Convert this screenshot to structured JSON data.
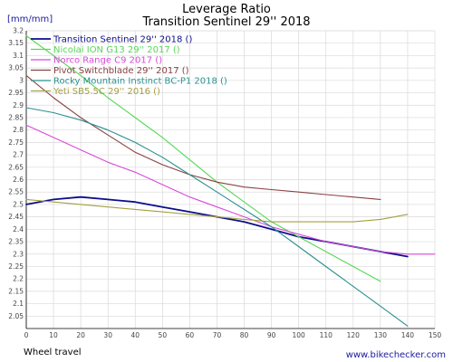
{
  "chart_data": {
    "type": "line",
    "title": "Leverage Ratio",
    "subtitle": "Transition Sentinel 29'' 2018",
    "unit_label": "[mm/mm]",
    "xlabel": "Wheel travel",
    "credit": "www.bikechecker.com",
    "xlim": [
      0,
      150
    ],
    "ylim": [
      2.0,
      3.2
    ],
    "x_ticks": [
      0,
      10,
      20,
      30,
      40,
      50,
      60,
      70,
      80,
      90,
      100,
      110,
      120,
      130,
      140,
      150
    ],
    "y_ticks": [
      2.05,
      2.1,
      2.15,
      2.2,
      2.25,
      2.3,
      2.35,
      2.4,
      2.45,
      2.5,
      2.55,
      2.6,
      2.65,
      2.7,
      2.75,
      2.8,
      2.85,
      2.9,
      2.95,
      3.0,
      3.05,
      3.1,
      3.15,
      3.2
    ],
    "grid": true,
    "legend_position": "top-left",
    "series": [
      {
        "name": "Transition Sentinel 29'' 2018 ()",
        "color": "#0d0d8c",
        "x": [
          0,
          10,
          20,
          30,
          40,
          50,
          60,
          70,
          80,
          90,
          100,
          110,
          120,
          130,
          140
        ],
        "y": [
          2.5,
          2.52,
          2.53,
          2.52,
          2.51,
          2.49,
          2.47,
          2.45,
          2.43,
          2.4,
          2.37,
          2.35,
          2.33,
          2.31,
          2.29
        ]
      },
      {
        "name": "Nicolai ION G13 29'' 2017 ()",
        "color": "#55d855",
        "x": [
          0,
          10,
          20,
          30,
          40,
          50,
          60,
          70,
          80,
          90,
          100,
          110,
          120,
          130
        ],
        "y": [
          3.18,
          3.1,
          3.02,
          2.93,
          2.85,
          2.77,
          2.68,
          2.59,
          2.51,
          2.43,
          2.37,
          2.31,
          2.25,
          2.19
        ]
      },
      {
        "name": "Norco Range C9 2017 ()",
        "color": "#d84ad8",
        "x": [
          0,
          10,
          20,
          30,
          40,
          50,
          60,
          70,
          80,
          90,
          100,
          110,
          120,
          130,
          140,
          150
        ],
        "y": [
          2.82,
          2.77,
          2.72,
          2.67,
          2.63,
          2.58,
          2.53,
          2.49,
          2.45,
          2.41,
          2.38,
          2.35,
          2.33,
          2.31,
          2.3,
          2.3
        ]
      },
      {
        "name": "Pivot Switchblade 29'' 2017 ()",
        "color": "#8a4040",
        "x": [
          0,
          10,
          20,
          30,
          40,
          50,
          60,
          70,
          80,
          90,
          100,
          110,
          120,
          130
        ],
        "y": [
          3.02,
          2.93,
          2.85,
          2.78,
          2.71,
          2.66,
          2.62,
          2.59,
          2.57,
          2.56,
          2.55,
          2.54,
          2.53,
          2.52
        ]
      },
      {
        "name": "Rocky Mountain Instinct BC-P1 2018 ()",
        "color": "#2a9090",
        "x": [
          0,
          10,
          20,
          30,
          40,
          50,
          60,
          70,
          80,
          90,
          100,
          110,
          120,
          130,
          140
        ],
        "y": [
          2.89,
          2.87,
          2.84,
          2.8,
          2.75,
          2.69,
          2.62,
          2.55,
          2.48,
          2.41,
          2.33,
          2.25,
          2.17,
          2.09,
          2.01
        ]
      },
      {
        "name": "Yeti SB5.5C 29'' 2016 ()",
        "color": "#a3a040",
        "x": [
          0,
          10,
          20,
          30,
          40,
          50,
          60,
          70,
          80,
          90,
          100,
          110,
          120,
          130,
          140
        ],
        "y": [
          2.52,
          2.51,
          2.5,
          2.49,
          2.48,
          2.47,
          2.46,
          2.45,
          2.44,
          2.43,
          2.43,
          2.43,
          2.43,
          2.44,
          2.46
        ]
      }
    ]
  }
}
